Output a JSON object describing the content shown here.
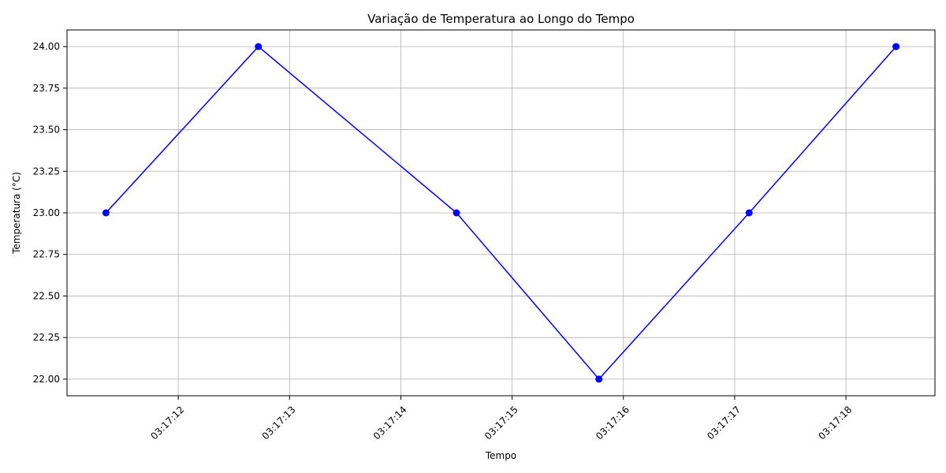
{
  "chart_data": {
    "type": "line",
    "title": "Variação de Temperatura ao Longo do Tempo",
    "xlabel": "Tempo",
    "ylabel": "Temperatura (°C)",
    "x": [
      "03:17:11.35",
      "03:17:12.72",
      "03:17:14.50",
      "03:17:15.78",
      "03:17:17.13",
      "03:17:18.45"
    ],
    "series": [
      {
        "values": [
          23.0,
          24.0,
          23.0,
          22.0,
          23.0,
          24.0
        ],
        "color": "#0000ff",
        "marker": "circle"
      }
    ],
    "xticks": [
      "03:17:12",
      "03:17:13",
      "03:17:14",
      "03:17:15",
      "03:17:16",
      "03:17:17",
      "03:17:18"
    ],
    "yticks": [
      "22.00",
      "22.25",
      "22.50",
      "22.75",
      "23.00",
      "23.25",
      "23.50",
      "23.75",
      "24.00"
    ],
    "xlim": [
      "03:17:11.00",
      "03:17:18.80"
    ],
    "ylim": [
      21.9,
      24.1
    ],
    "grid": true,
    "xtick_rotation": 45
  }
}
